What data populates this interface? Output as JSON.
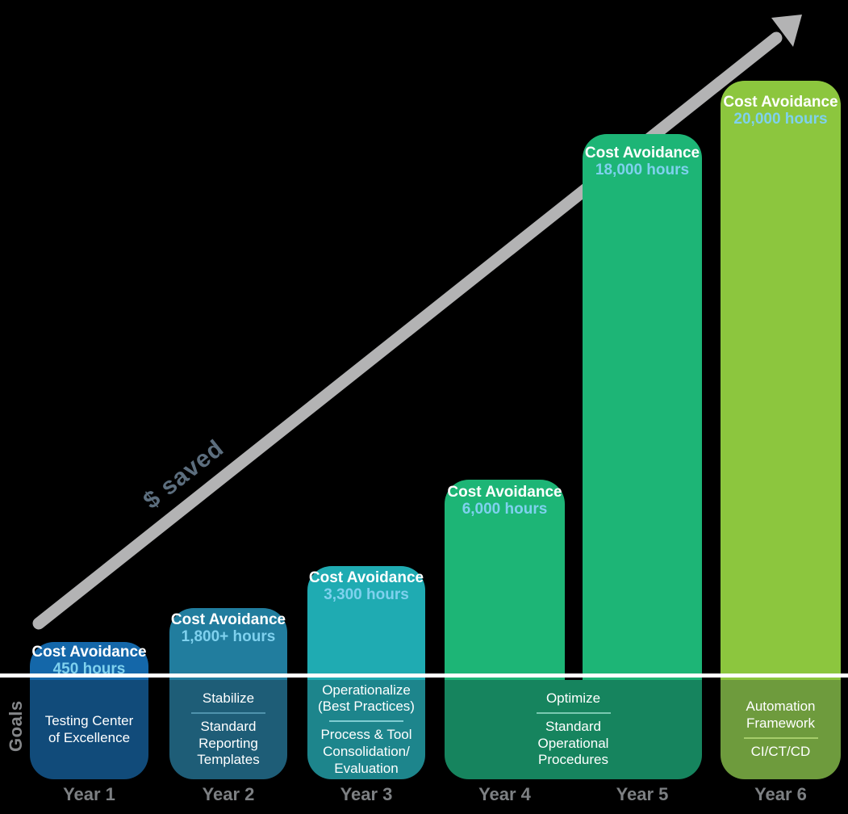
{
  "decorations": {
    "saved_label": "$ saved",
    "saved_label_color": "#5c6e7e",
    "goals_label": "Goals",
    "goals_label_color": "#85878a",
    "arrow_color": "#b3b3b4",
    "baseline_color": "#ffffff",
    "year_label_color": "#7d8083",
    "hours_text_color": "#7fd1ee",
    "background_color": "#000000"
  },
  "bars": [
    {
      "year": "Year 1",
      "header": "Cost Avoidance",
      "hours": "450 hours",
      "top_color": "#1467a9",
      "bottom_color": "#114b7a",
      "divider_color": null,
      "goal_lines_primary": [
        "Testing Center",
        "of Excellence"
      ],
      "goal_lines_secondary": []
    },
    {
      "year": "Year 2",
      "header": "Cost Avoidance",
      "hours": "1,800+ hours",
      "top_color": "#217d9e",
      "bottom_color": "#1e5d77",
      "divider_color": "#4f93ad",
      "goal_lines_primary": [
        "Stabilize"
      ],
      "goal_lines_secondary": [
        "Standard",
        "Reporting",
        "Templates"
      ]
    },
    {
      "year": "Year 3",
      "header": "Cost Avoidance",
      "hours": "3,300 hours",
      "top_color": "#1fabb2",
      "bottom_color": "#1d858c",
      "divider_color": "#7fcdd2",
      "goal_lines_primary": [
        "Operationalize",
        "(Best Practices)"
      ],
      "goal_lines_secondary": [
        "Process & Tool",
        "Consolidation/",
        "Evaluation"
      ]
    },
    {
      "year": "Year 4",
      "header": "Cost Avoidance",
      "hours": "6,000 hours",
      "top_color": "#1db576",
      "bottom_color": "#16845e",
      "divider_color": "#79c9b1",
      "goal_lines_primary": [],
      "goal_lines_secondary": []
    },
    {
      "year": "Year 5",
      "header": "Cost Avoidance",
      "hours": "18,000 hours",
      "top_color": "#1db576",
      "bottom_color": "#16845e",
      "divider_color": "#79c9b1",
      "goal_lines_primary": [],
      "goal_lines_secondary": []
    },
    {
      "year": "Year 6",
      "header": "Cost Avoidance",
      "hours": "20,000 hours",
      "top_color": "#8cc63e",
      "bottom_color": "#6e9b3d",
      "divider_color": "#a5cd6b",
      "goal_lines_primary": [
        "Automation",
        "Framework"
      ],
      "goal_lines_secondary": [
        "CI/CT/CD"
      ]
    }
  ],
  "merged_goal": {
    "title": "Optimize",
    "lines": [
      "Standard",
      "Operational",
      "Procedures"
    ],
    "bottom_color": "#16845e",
    "divider_color": "#79c9b1"
  },
  "chart_data": {
    "type": "bar",
    "title": "",
    "categories": [
      "Year 1",
      "Year 2",
      "Year 3",
      "Year 4",
      "Year 5",
      "Year 6"
    ],
    "series": [
      {
        "name": "Cost Avoidance (hours)",
        "values": [
          450,
          1800,
          3300,
          6000,
          18000,
          20000
        ]
      }
    ],
    "value_labels": [
      "450 hours",
      "1,800+ hours",
      "3,300 hours",
      "6,000 hours",
      "18,000 hours",
      "20,000 hours"
    ],
    "xlabel": "",
    "ylabel": "Goals",
    "annotations": [
      "$ saved"
    ],
    "legend": false,
    "grid": false,
    "goals": [
      {
        "years": [
          "Year 1"
        ],
        "focus": null,
        "items": [
          "Testing Center of Excellence"
        ]
      },
      {
        "years": [
          "Year 2"
        ],
        "focus": "Stabilize",
        "items": [
          "Standard Reporting Templates"
        ]
      },
      {
        "years": [
          "Year 3"
        ],
        "focus": "Operationalize (Best Practices)",
        "items": [
          "Process & Tool Consolidation/Evaluation"
        ]
      },
      {
        "years": [
          "Year 4",
          "Year 5"
        ],
        "focus": "Optimize",
        "items": [
          "Standard Operational Procedures"
        ]
      },
      {
        "years": [
          "Year 6"
        ],
        "focus": "Automation Framework",
        "items": [
          "CI/CT/CD"
        ]
      }
    ]
  }
}
